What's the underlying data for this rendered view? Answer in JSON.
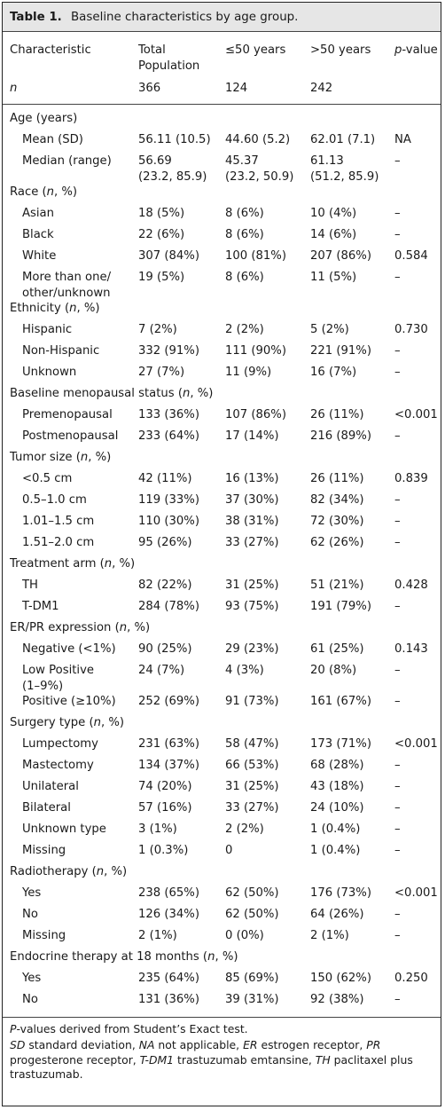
{
  "title": {
    "label": "Table 1.",
    "text": "Baseline characteristics by age group."
  },
  "headers": [
    [
      "Characteristic"
    ],
    [
      "Total",
      "Population"
    ],
    [
      "≤50 years"
    ],
    [
      ">50 years"
    ],
    [
      "p-value"
    ]
  ],
  "n_row": [
    "n",
    "366",
    "124",
    "242",
    ""
  ],
  "sections": [
    {
      "label": "Age (years)",
      "rows": [
        [
          [
            "Mean (SD)"
          ],
          [
            "56.11 (10.5)"
          ],
          [
            "44.60 (5.2)"
          ],
          [
            "62.01 (7.1)"
          ],
          [
            "NA"
          ]
        ],
        [
          [
            "Median (range)"
          ],
          [
            "56.69",
            "(23.2, 85.9)"
          ],
          [
            "45.37",
            "(23.2, 50.9)"
          ],
          [
            "61.13",
            "(51.2, 85.9)"
          ],
          [
            "–"
          ]
        ]
      ]
    },
    {
      "label": "Race (n, %)",
      "rows": [
        [
          [
            "Asian"
          ],
          [
            "18 (5%)"
          ],
          [
            "8 (6%)"
          ],
          [
            "10 (4%)"
          ],
          [
            "–"
          ]
        ],
        [
          [
            "Black"
          ],
          [
            "22 (6%)"
          ],
          [
            "8 (6%)"
          ],
          [
            "14 (6%)"
          ],
          [
            "–"
          ]
        ],
        [
          [
            "White"
          ],
          [
            "307 (84%)"
          ],
          [
            "100 (81%)"
          ],
          [
            "207 (86%)"
          ],
          [
            "0.584"
          ]
        ],
        [
          [
            "More than one/",
            "other/unknown"
          ],
          [
            "19 (5%)"
          ],
          [
            "8 (6%)"
          ],
          [
            "11 (5%)"
          ],
          [
            "–"
          ]
        ]
      ]
    },
    {
      "label": "Ethnicity (n, %)",
      "rows": [
        [
          [
            "Hispanic"
          ],
          [
            "7 (2%)"
          ],
          [
            "2 (2%)"
          ],
          [
            "5 (2%)"
          ],
          [
            "0.730"
          ]
        ],
        [
          [
            "Non-Hispanic"
          ],
          [
            "332 (91%)"
          ],
          [
            "111 (90%)"
          ],
          [
            "221 (91%)"
          ],
          [
            "–"
          ]
        ],
        [
          [
            "Unknown"
          ],
          [
            "27 (7%)"
          ],
          [
            "11 (9%)"
          ],
          [
            "16 (7%)"
          ],
          [
            "–"
          ]
        ]
      ]
    },
    {
      "label": "Baseline menopausal status (n, %)",
      "rows": [
        [
          [
            "Premenopausal"
          ],
          [
            "133 (36%)"
          ],
          [
            "107 (86%)"
          ],
          [
            "26 (11%)"
          ],
          [
            "<0.001"
          ]
        ],
        [
          [
            "Postmenopausal"
          ],
          [
            "233 (64%)"
          ],
          [
            "17 (14%)"
          ],
          [
            "216 (89%)"
          ],
          [
            "–"
          ]
        ]
      ]
    },
    {
      "label": "Tumor size (n, %)",
      "rows": [
        [
          [
            "<0.5 cm"
          ],
          [
            "42 (11%)"
          ],
          [
            "16 (13%)"
          ],
          [
            "26 (11%)"
          ],
          [
            "0.839"
          ]
        ],
        [
          [
            "0.5–1.0 cm"
          ],
          [
            "119 (33%)"
          ],
          [
            "37 (30%)"
          ],
          [
            "82 (34%)"
          ],
          [
            "–"
          ]
        ],
        [
          [
            "1.01–1.5 cm"
          ],
          [
            "110 (30%)"
          ],
          [
            "38 (31%)"
          ],
          [
            "72 (30%)"
          ],
          [
            "–"
          ]
        ],
        [
          [
            "1.51–2.0 cm"
          ],
          [
            "95 (26%)"
          ],
          [
            "33 (27%)"
          ],
          [
            "62 (26%)"
          ],
          [
            "–"
          ]
        ]
      ]
    },
    {
      "label": "Treatment arm (n, %)",
      "rows": [
        [
          [
            "TH"
          ],
          [
            "82 (22%)"
          ],
          [
            "31 (25%)"
          ],
          [
            "51 (21%)"
          ],
          [
            "0.428"
          ]
        ],
        [
          [
            "T-DM1"
          ],
          [
            "284 (78%)"
          ],
          [
            "93 (75%)"
          ],
          [
            "191 (79%)"
          ],
          [
            "–"
          ]
        ]
      ]
    },
    {
      "label": "ER/PR expression (n, %)",
      "rows": [
        [
          [
            "Negative (<1%)"
          ],
          [
            "90 (25%)"
          ],
          [
            "29 (23%)"
          ],
          [
            "61 (25%)"
          ],
          [
            "0.143"
          ]
        ],
        [
          [
            "Low Positive",
            "(1–9%)"
          ],
          [
            "24 (7%)"
          ],
          [
            "4 (3%)"
          ],
          [
            "20 (8%)"
          ],
          [
            "–"
          ]
        ],
        [
          [
            "Positive (≥10%)"
          ],
          [
            "252 (69%)"
          ],
          [
            "91 (73%)"
          ],
          [
            "161 (67%)"
          ],
          [
            "–"
          ]
        ]
      ]
    },
    {
      "label": "Surgery type (n, %)",
      "rows": [
        [
          [
            "Lumpectomy"
          ],
          [
            "231 (63%)"
          ],
          [
            "58 (47%)"
          ],
          [
            "173 (71%)"
          ],
          [
            "<0.001"
          ]
        ],
        [
          [
            "Mastectomy"
          ],
          [
            "134 (37%)"
          ],
          [
            "66 (53%)"
          ],
          [
            "68 (28%)"
          ],
          [
            "–"
          ]
        ],
        [
          [
            "Unilateral"
          ],
          [
            "74 (20%)"
          ],
          [
            "31 (25%)"
          ],
          [
            "43 (18%)"
          ],
          [
            "–"
          ]
        ],
        [
          [
            "Bilateral"
          ],
          [
            "57 (16%)"
          ],
          [
            "33 (27%)"
          ],
          [
            "24 (10%)"
          ],
          [
            "–"
          ]
        ],
        [
          [
            "Unknown type"
          ],
          [
            "3 (1%)"
          ],
          [
            "2 (2%)"
          ],
          [
            "1 (0.4%)"
          ],
          [
            "–"
          ]
        ],
        [
          [
            "Missing"
          ],
          [
            "1 (0.3%)"
          ],
          [
            "0"
          ],
          [
            "1 (0.4%)"
          ],
          [
            "–"
          ]
        ]
      ]
    },
    {
      "label": "Radiotherapy (n, %)",
      "rows": [
        [
          [
            "Yes"
          ],
          [
            "238 (65%)"
          ],
          [
            "62 (50%)"
          ],
          [
            "176 (73%)"
          ],
          [
            "<0.001"
          ]
        ],
        [
          [
            "No"
          ],
          [
            "126 (34%)"
          ],
          [
            "62 (50%)"
          ],
          [
            "64 (26%)"
          ],
          [
            "–"
          ]
        ],
        [
          [
            "Missing"
          ],
          [
            "2 (1%)"
          ],
          [
            "0 (0%)"
          ],
          [
            "2 (1%)"
          ],
          [
            "–"
          ]
        ]
      ]
    },
    {
      "label": "Endocrine therapy at 18 months (n, %)",
      "rows": [
        [
          [
            "Yes"
          ],
          [
            "235 (64%)"
          ],
          [
            "85 (69%)"
          ],
          [
            "150 (62%)"
          ],
          [
            "0.250"
          ]
        ],
        [
          [
            "No"
          ],
          [
            "131 (36%)"
          ],
          [
            "39 (31%)"
          ],
          [
            "92 (38%)"
          ],
          [
            "–"
          ]
        ]
      ]
    }
  ],
  "footnotes": [
    "P-values derived from Student’s Exact test.",
    "SD standard deviation, NA not applicable, ER estrogen receptor, PR progesterone receptor, T-DM1 trastuzumab emtansine, TH paclitaxel plus trastuzumab."
  ]
}
